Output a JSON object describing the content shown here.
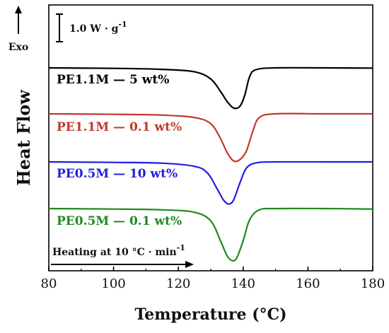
{
  "chart_data": {
    "type": "line",
    "xlabel": "Temperature (°C)",
    "ylabel": "Heat Flow",
    "x_ticks": [
      "80",
      "100",
      "120",
      "140",
      "160",
      "180"
    ],
    "xlim": [
      80,
      180
    ],
    "exo_label": "Exo",
    "scale_label": "1.0 W · g",
    "scale_sup": "-1",
    "heating_label": "Heating at 10 °C · min",
    "heating_sup": "-1",
    "series": [
      {
        "name": "PE1.1M — 5 wt%",
        "color": "#000000",
        "points": [
          [
            80,
            0.0
          ],
          [
            100,
            -0.02
          ],
          [
            115,
            -0.06
          ],
          [
            125,
            -0.16
          ],
          [
            130,
            -0.45
          ],
          [
            133,
            -0.95
          ],
          [
            135,
            -1.35
          ],
          [
            137,
            -1.62
          ],
          [
            139,
            -1.55
          ],
          [
            140.5,
            -1.1
          ],
          [
            142,
            -0.35
          ],
          [
            144,
            -0.07
          ],
          [
            150,
            0.0
          ],
          [
            165,
            0.0
          ],
          [
            180,
            -0.01
          ]
        ]
      },
      {
        "name": "PE1.1M — 0.1 wt%",
        "color": "#c0392b",
        "points": [
          [
            80,
            0.0
          ],
          [
            100,
            -0.02
          ],
          [
            115,
            -0.05
          ],
          [
            125,
            -0.15
          ],
          [
            130,
            -0.4
          ],
          [
            133,
            -1.0
          ],
          [
            135,
            -1.55
          ],
          [
            137,
            -1.9
          ],
          [
            139,
            -1.85
          ],
          [
            141,
            -1.5
          ],
          [
            143,
            -0.7
          ],
          [
            145,
            -0.15
          ],
          [
            150,
            0.0
          ],
          [
            165,
            0.0
          ],
          [
            180,
            0.0
          ]
        ]
      },
      {
        "name": "PE0.5M — 10 wt%",
        "color": "#1f1fe0",
        "points": [
          [
            80,
            0.0
          ],
          [
            100,
            -0.02
          ],
          [
            115,
            -0.05
          ],
          [
            125,
            -0.18
          ],
          [
            129,
            -0.45
          ],
          [
            132,
            -1.1
          ],
          [
            134,
            -1.55
          ],
          [
            135.5,
            -1.7
          ],
          [
            137,
            -1.55
          ],
          [
            139,
            -0.85
          ],
          [
            141,
            -0.25
          ],
          [
            144,
            -0.04
          ],
          [
            150,
            0.0
          ],
          [
            165,
            0.0
          ],
          [
            180,
            0.0
          ]
        ]
      },
      {
        "name": "PE0.5M — 0.1 wt%",
        "color": "#1e8a1e",
        "points": [
          [
            80,
            0.0
          ],
          [
            100,
            -0.02
          ],
          [
            115,
            -0.05
          ],
          [
            125,
            -0.15
          ],
          [
            130,
            -0.5
          ],
          [
            133,
            -1.3
          ],
          [
            135,
            -1.9
          ],
          [
            136.5,
            -2.1
          ],
          [
            138,
            -2.0
          ],
          [
            140,
            -1.3
          ],
          [
            142,
            -0.45
          ],
          [
            145,
            -0.05
          ],
          [
            150,
            0.0
          ],
          [
            165,
            0.0
          ],
          [
            180,
            -0.02
          ]
        ]
      }
    ]
  }
}
